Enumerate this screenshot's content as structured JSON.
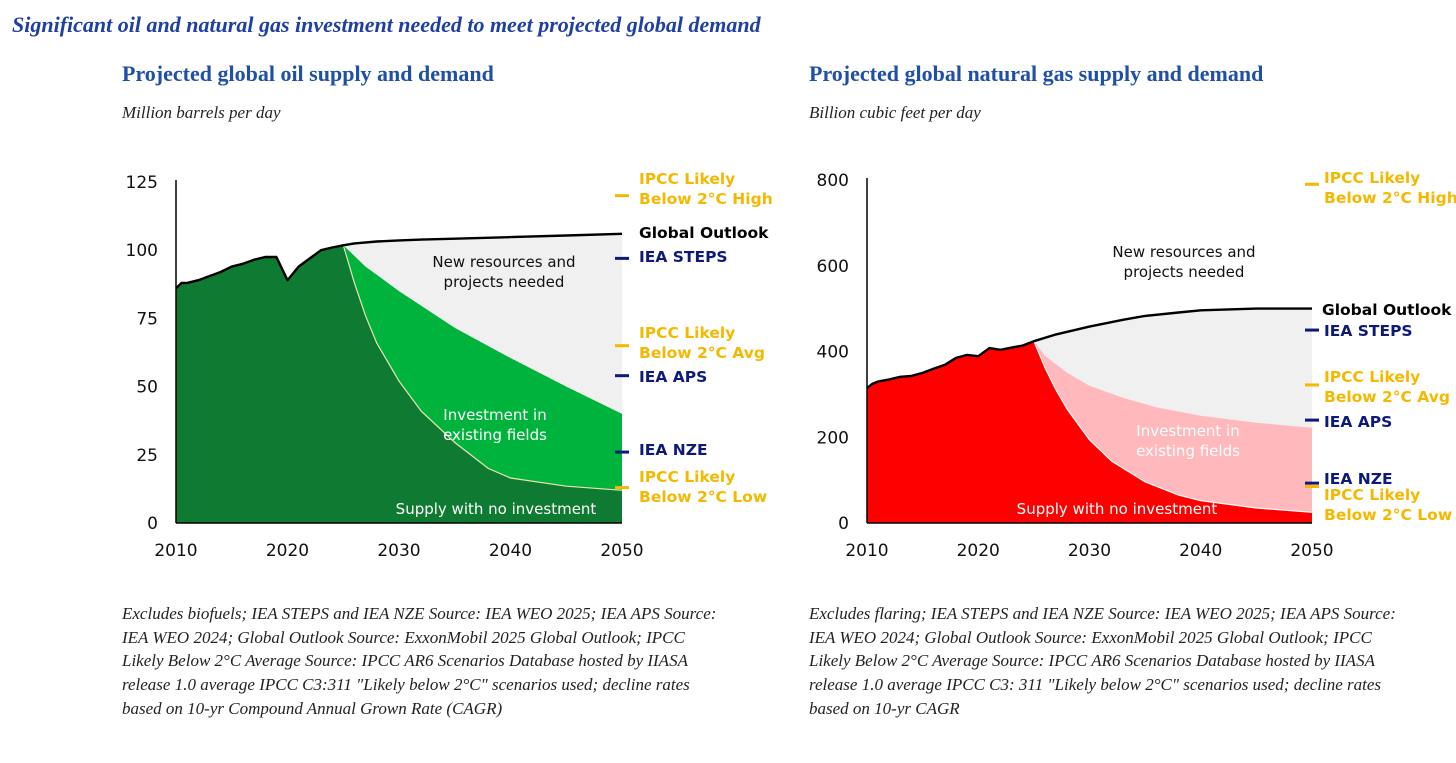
{
  "headline": "Significant oil and natural gas investment needed to meet projected global demand",
  "colors": {
    "title_blue": "#1f4fa8",
    "navy": "#0d1a7a",
    "gold": "#f5b800",
    "grey_fill": "#f0f0f0"
  },
  "chart_data": [
    {
      "type": "area",
      "title": "Projected global oil supply and demand",
      "subtitle": "Million barrels per day",
      "xlim": [
        2010,
        2050
      ],
      "ylim": [
        0,
        125
      ],
      "x_ticks": [
        "2010",
        "2020",
        "2030",
        "2040",
        "2050"
      ],
      "y_ticks": [
        "0",
        "25",
        "50",
        "75",
        "100",
        "125"
      ],
      "colors": {
        "no_investment": "#0e7a32",
        "existing": "#00b33c",
        "new": "#f0f0f0"
      },
      "series": [
        {
          "name": "Global Outlook",
          "x": [
            2010,
            2010.5,
            2011,
            2012,
            2013,
            2014,
            2015,
            2016,
            2017,
            2018,
            2019,
            2020,
            2021,
            2022,
            2023,
            2024,
            2025,
            2026,
            2028,
            2030,
            2032,
            2035,
            2040,
            2045,
            2050
          ],
          "values": [
            86,
            88,
            88,
            89,
            90.5,
            92,
            94,
            95,
            96.5,
            97.5,
            97.5,
            89,
            94,
            97,
            100,
            101,
            101.8,
            102.5,
            103.2,
            103.6,
            103.9,
            104.2,
            104.8,
            105.4,
            106
          ]
        },
        {
          "name": "Investment in existing fields",
          "x": [
            2025,
            2027,
            2030,
            2035,
            2040,
            2045,
            2050
          ],
          "values": [
            101.8,
            94,
            85,
            71.5,
            60.5,
            50,
            40
          ]
        },
        {
          "name": "Supply with no investment",
          "x": [
            2025,
            2026,
            2027,
            2028,
            2030,
            2032,
            2035,
            2038,
            2040,
            2045,
            2050
          ],
          "values": [
            101.8,
            88,
            76,
            66,
            52,
            41,
            29.5,
            20,
            16.5,
            13.5,
            12
          ]
        }
      ],
      "area_labels": {
        "new": [
          "New resources and",
          "projects needed"
        ],
        "existing": [
          "Investment in",
          "existing fields"
        ],
        "no_investment": "Supply with no investment"
      },
      "scenario_markers": [
        {
          "lines": [
            "IPCC Likely",
            "Below 2°C High"
          ],
          "value": 120,
          "color": "#f5b800",
          "text_y": [
            178,
            198
          ]
        },
        {
          "lines": [
            "Global Outlook"
          ],
          "value": 106,
          "color": "#000000",
          "text_y": [
            232
          ],
          "no_tick": true
        },
        {
          "lines": [
            "IEA STEPS"
          ],
          "value": 97,
          "color": "#0d1a7a",
          "text_y": [
            256
          ]
        },
        {
          "lines": [
            "IPCC Likely",
            "Below 2°C Avg"
          ],
          "value": 65,
          "color": "#f5b800",
          "text_y": [
            332,
            352
          ]
        },
        {
          "lines": [
            "IEA APS"
          ],
          "value": 54,
          "color": "#0d1a7a",
          "text_y": [
            376
          ]
        },
        {
          "lines": [
            "IEA NZE"
          ],
          "value": 26,
          "color": "#0d1a7a",
          "text_y": [
            449
          ]
        },
        {
          "lines": [
            "IPCC Likely",
            "Below 2°C Low"
          ],
          "value": 13,
          "color": "#f5b800",
          "text_y": [
            476,
            496
          ]
        }
      ],
      "footnote": "Excludes biofuels; IEA STEPS and IEA NZE Source: IEA WEO 2025; IEA APS Source: IEA WEO 2024; Global Outlook Source: ExxonMobil 2025 Global Outlook; IPCC Likely Below 2°C Average Source: IPCC AR6 Scenarios Database hosted by IIASA release 1.0 average IPCC C3:311 \"Likely below 2°C\" scenarios used; decline rates based on 10-yr Compound Annual Grown Rate (CAGR)"
    },
    {
      "type": "area",
      "title": "Projected global natural gas supply and demand",
      "subtitle": "Billion cubic feet per day",
      "xlim": [
        2010,
        2050
      ],
      "ylim": [
        0,
        800
      ],
      "x_ticks": [
        "2010",
        "2020",
        "2030",
        "2040",
        "2050"
      ],
      "y_ticks": [
        "0",
        "200",
        "400",
        "600",
        "800"
      ],
      "colors": {
        "no_investment": "#fe0000",
        "existing": "#ffb8bc",
        "new": "#f0f0f0"
      },
      "series": [
        {
          "name": "Global Outlook",
          "x": [
            2010,
            2010.5,
            2011,
            2012,
            2013,
            2014,
            2015,
            2016,
            2017,
            2018,
            2019,
            2020,
            2021,
            2022,
            2023,
            2024,
            2025,
            2027,
            2030,
            2033,
            2035,
            2038,
            2040,
            2045,
            2050
          ],
          "values": [
            315,
            325,
            330,
            335,
            341,
            343,
            350,
            360,
            369,
            385,
            392,
            389,
            408,
            404,
            409,
            414,
            424,
            440,
            458,
            474,
            483,
            491,
            496,
            500,
            500
          ]
        },
        {
          "name": "Investment in existing fields",
          "x": [
            2025,
            2026,
            2028,
            2030,
            2033,
            2036,
            2040,
            2045,
            2050
          ],
          "values": [
            424,
            390,
            350,
            320,
            292,
            270,
            250,
            234,
            222
          ]
        },
        {
          "name": "Supply with no investment",
          "x": [
            2025,
            2026,
            2027,
            2028,
            2030,
            2032,
            2035,
            2038,
            2040,
            2045,
            2050
          ],
          "values": [
            424,
            362,
            310,
            265,
            194,
            144,
            96,
            65,
            52,
            35,
            25
          ]
        }
      ],
      "area_labels": {
        "new": [
          "New resources and",
          "projects needed"
        ],
        "existing": [
          "Investment in",
          "existing fields"
        ],
        "no_investment": "Supply with no investment"
      },
      "scenario_markers": [
        {
          "lines": [
            "IPCC Likely",
            "Below 2°C High"
          ],
          "value": 790,
          "color": "#f5b800",
          "text_y": [
            177,
            197
          ]
        },
        {
          "lines": [
            "Global Outlook"
          ],
          "value": 500,
          "color": "#000000",
          "text_y": [
            309
          ],
          "no_tick": true
        },
        {
          "lines": [
            "IEA STEPS"
          ],
          "value": 450,
          "color": "#0d1a7a",
          "text_y": [
            330
          ]
        },
        {
          "lines": [
            "IPCC Likely",
            "Below 2°C Avg"
          ],
          "value": 322,
          "color": "#f5b800",
          "text_y": [
            376,
            396
          ]
        },
        {
          "lines": [
            "IEA APS"
          ],
          "value": 240,
          "color": "#0d1a7a",
          "text_y": [
            421
          ]
        },
        {
          "lines": [
            "IEA NZE"
          ],
          "value": 93,
          "color": "#0d1a7a",
          "text_y": [
            478
          ]
        },
        {
          "lines": [
            "IPCC Likely",
            "Below 2°C Low"
          ],
          "value": 85,
          "color": "#f5b800",
          "text_y": [
            494,
            514
          ]
        }
      ],
      "footnote": "Excludes flaring; IEA STEPS and IEA NZE Source: IEA WEO 2025; IEA APS Source: IEA WEO 2024; Global Outlook Source: ExxonMobil 2025 Global Outlook; IPCC Likely Below 2°C Average Source: IPCC AR6 Scenarios Database hosted by IIASA release 1.0 average IPCC C3: 311 \"Likely below 2°C\" scenarios used; decline rates based on 10-yr CAGR"
    }
  ]
}
